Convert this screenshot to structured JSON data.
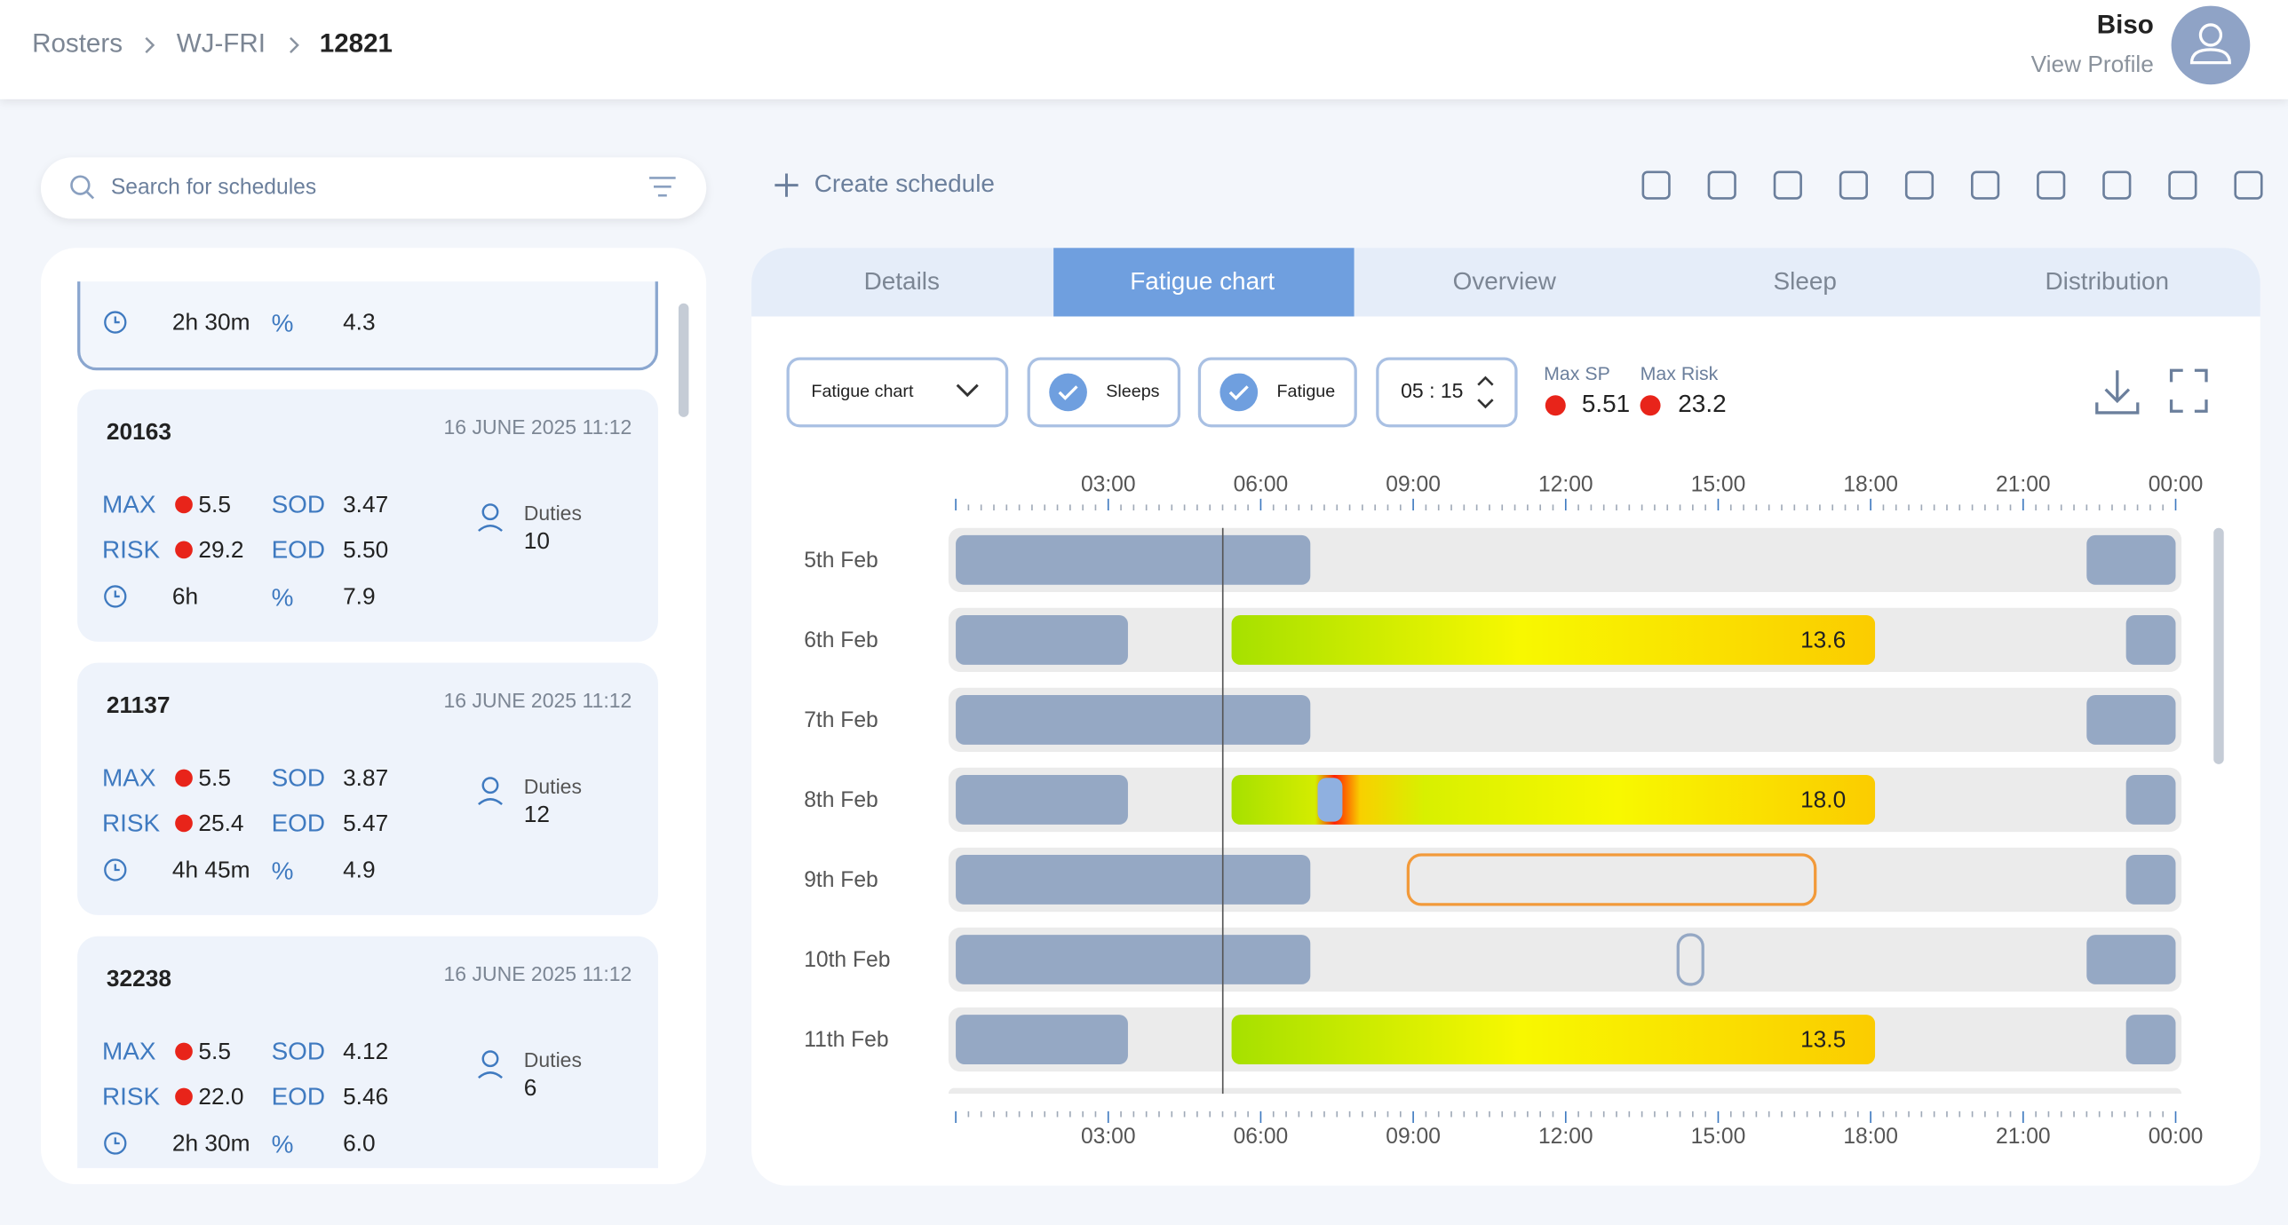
{
  "breadcrumb": [
    "Rosters",
    "WJ-FRI",
    "12821"
  ],
  "user": {
    "name": "Biso",
    "link": "View Profile"
  },
  "search": {
    "placeholder": "Search for schedules"
  },
  "create_schedule": "Create schedule",
  "partial_card": {
    "duration": "2h 30m",
    "percent_label": "%",
    "percent": "4.3"
  },
  "schedules": [
    {
      "id": "20163",
      "date": "16 JUNE 2025 11:12",
      "max_label": "MAX",
      "max": "5.5",
      "sod_label": "SOD",
      "sod": "3.47",
      "risk_label": "RISK",
      "risk": "29.2",
      "eod_label": "EOD",
      "eod": "5.50",
      "duration": "6h",
      "percent_label": "%",
      "percent": "7.9",
      "duties_label": "Duties",
      "duties": "10"
    },
    {
      "id": "21137",
      "date": "16 JUNE 2025 11:12",
      "max_label": "MAX",
      "max": "5.5",
      "sod_label": "SOD",
      "sod": "3.87",
      "risk_label": "RISK",
      "risk": "25.4",
      "eod_label": "EOD",
      "eod": "5.47",
      "duration": "4h 45m",
      "percent_label": "%",
      "percent": "4.9",
      "duties_label": "Duties",
      "duties": "12"
    },
    {
      "id": "32238",
      "date": "16 JUNE 2025 11:12",
      "max_label": "MAX",
      "max": "5.5",
      "sod_label": "SOD",
      "sod": "4.12",
      "risk_label": "RISK",
      "risk": "22.0",
      "eod_label": "EOD",
      "eod": "5.46",
      "duration": "2h 30m",
      "percent_label": "%",
      "percent": "6.0",
      "duties_label": "Duties",
      "duties": "6"
    }
  ],
  "tabs": {
    "items": [
      "Details",
      "Fatigue chart",
      "Overview",
      "Sleep",
      "Distribution"
    ],
    "active": 1
  },
  "controls": {
    "dropdown": "Fatigue chart",
    "checkboxes": [
      "Sleeps",
      "Fatigue"
    ],
    "time": "05 : 15"
  },
  "stats": [
    {
      "label": "Max SP",
      "value": "5.51"
    },
    {
      "label": "Max Risk",
      "value": "23.2"
    }
  ],
  "time_axis": [
    "03:00",
    "06:00",
    "09:00",
    "12:00",
    "15:00",
    "18:00",
    "21:00",
    "00:00"
  ],
  "rows": [
    {
      "label": "5th Feb"
    },
    {
      "label": "6th Feb",
      "value": "13.6"
    },
    {
      "label": "7th Feb"
    },
    {
      "label": "8th Feb",
      "value": "18.0"
    },
    {
      "label": "9th Feb"
    },
    {
      "label": "10th Feb"
    },
    {
      "label": "11th Feb",
      "value": "13.5"
    }
  ]
}
